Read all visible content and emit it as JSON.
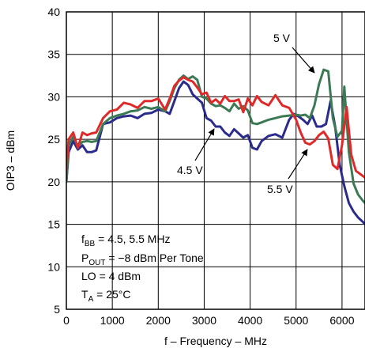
{
  "chart_data": {
    "type": "line",
    "title": "",
    "xlabel": "f – Frequency – MHz",
    "ylabel": "OIP3 – dBm",
    "xlim": [
      0,
      6500
    ],
    "ylim": [
      5,
      40
    ],
    "xticks": [
      "0",
      "1000",
      "2000",
      "3000",
      "4000",
      "5000",
      "6000"
    ],
    "yticks": [
      "5",
      "10",
      "15",
      "20",
      "25",
      "30",
      "35",
      "40"
    ],
    "grid": true,
    "conditions": {
      "fbb_sym": "f",
      "fbb_sub": "BB",
      "fbb_val": " = 4.5, 5.5 MHz",
      "pout_sym": "P",
      "pout_sub": "OUT",
      "pout_val": " = −8 dBm Per Tone",
      "lo": "LO = 4 dBm",
      "ta_sym": "T",
      "ta_sub": "A",
      "ta_val": " = 25°C"
    },
    "series": [
      {
        "name": "4.5 V",
        "color": "#2b2b8c",
        "x": [
          0,
          50,
          150,
          250,
          350,
          450,
          550,
          650,
          800,
          950,
          1100,
          1250,
          1400,
          1550,
          1700,
          1850,
          2000,
          2150,
          2250,
          2350,
          2450,
          2550,
          2650,
          2750,
          2850,
          2950,
          3050,
          3150,
          3250,
          3350,
          3450,
          3550,
          3650,
          3750,
          3850,
          3950,
          4050,
          4150,
          4250,
          4400,
          4550,
          4700,
          4850,
          4950,
          5050,
          5150,
          5250,
          5350,
          5450,
          5550,
          5650,
          5750,
          5850,
          5950,
          6050,
          6150,
          6250,
          6350,
          6450,
          6500
        ],
        "y": [
          20,
          23.5,
          24.8,
          23.8,
          24.3,
          23.5,
          23.5,
          23.7,
          26.8,
          27,
          27.5,
          27.7,
          27.8,
          27.5,
          28,
          28.1,
          28.5,
          28.3,
          28,
          29.5,
          31,
          31.8,
          31.4,
          30.3,
          29.8,
          29.3,
          27.5,
          27.2,
          26.5,
          26.5,
          25.8,
          25.4,
          26.2,
          25.7,
          25.2,
          25.5,
          24,
          23.8,
          24.8,
          25.4,
          25.6,
          25.2,
          27.3,
          28,
          27.7,
          27.3,
          26.8,
          27.8,
          26.5,
          26.5,
          26.8,
          29.5,
          26.5,
          22,
          19.5,
          17.5,
          16.5,
          15.8,
          15.3,
          15
        ]
      },
      {
        "name": "5 V",
        "color": "#3c7a55",
        "x": [
          0,
          50,
          150,
          250,
          350,
          450,
          550,
          650,
          800,
          950,
          1100,
          1250,
          1400,
          1550,
          1700,
          1850,
          2000,
          2150,
          2250,
          2350,
          2450,
          2550,
          2650,
          2750,
          2850,
          2950,
          3050,
          3150,
          3250,
          3350,
          3450,
          3550,
          3650,
          3750,
          3850,
          3950,
          4050,
          4150,
          4250,
          4400,
          4550,
          4700,
          4850,
          5000,
          5100,
          5200,
          5300,
          5400,
          5500,
          5600,
          5700,
          5800,
          5900,
          6000,
          6050,
          6150,
          6250,
          6350,
          6450,
          6500
        ],
        "y": [
          20,
          24.3,
          25.3,
          24.2,
          24.7,
          24.8,
          24.7,
          24.8,
          26.8,
          27.5,
          27.8,
          28,
          28.3,
          28.4,
          28.8,
          28.6,
          28.8,
          28.3,
          29.5,
          31,
          32,
          32.5,
          32.1,
          32.4,
          32,
          30,
          29.8,
          29.2,
          28.9,
          29,
          28.7,
          28.3,
          29.2,
          28.6,
          28.9,
          28.4,
          26.9,
          26.8,
          27,
          27.3,
          27.5,
          27.7,
          27.8,
          27.9,
          27.8,
          27.9,
          27.5,
          29,
          31.5,
          33.2,
          33,
          27.5,
          25.3,
          26,
          31.2,
          23.5,
          19.8,
          18.5,
          17.8,
          17.5
        ]
      },
      {
        "name": "5.5 V",
        "color": "#e02a2a",
        "x": [
          0,
          50,
          150,
          250,
          350,
          450,
          550,
          650,
          800,
          950,
          1100,
          1250,
          1400,
          1550,
          1700,
          1850,
          2000,
          2150,
          2250,
          2350,
          2450,
          2550,
          2650,
          2750,
          2850,
          2950,
          3050,
          3150,
          3250,
          3350,
          3450,
          3550,
          3650,
          3750,
          3850,
          3950,
          4050,
          4150,
          4250,
          4400,
          4550,
          4700,
          4850,
          5000,
          5100,
          5200,
          5300,
          5400,
          5500,
          5600,
          5700,
          5800,
          5900,
          6000,
          6100,
          6200,
          6300,
          6400,
          6500
        ],
        "y": [
          21.5,
          25,
          25.8,
          24,
          25.8,
          25.5,
          25.7,
          25.8,
          27.5,
          28.3,
          28.5,
          29.3,
          29.1,
          28.7,
          29.5,
          29.5,
          29.8,
          28.5,
          29.8,
          31.3,
          31.9,
          32.3,
          32,
          31.8,
          31.1,
          30.3,
          30.5,
          29.3,
          29.7,
          29.2,
          30.1,
          29.5,
          29.5,
          29.7,
          28.2,
          29.8,
          29,
          30.1,
          29.4,
          29,
          30.2,
          29,
          28.7,
          27.3,
          25.8,
          24.6,
          24.4,
          24.8,
          25.5,
          25.9,
          25.1,
          22,
          21.5,
          24.3,
          28.8,
          23.2,
          21.3,
          20.9,
          20.5
        ]
      }
    ],
    "annotations": [
      {
        "text": "5 V",
        "series": "5 V"
      },
      {
        "text": "4.5 V",
        "series": "4.5 V"
      },
      {
        "text": "5.5 V",
        "series": "5.5 V"
      }
    ]
  }
}
